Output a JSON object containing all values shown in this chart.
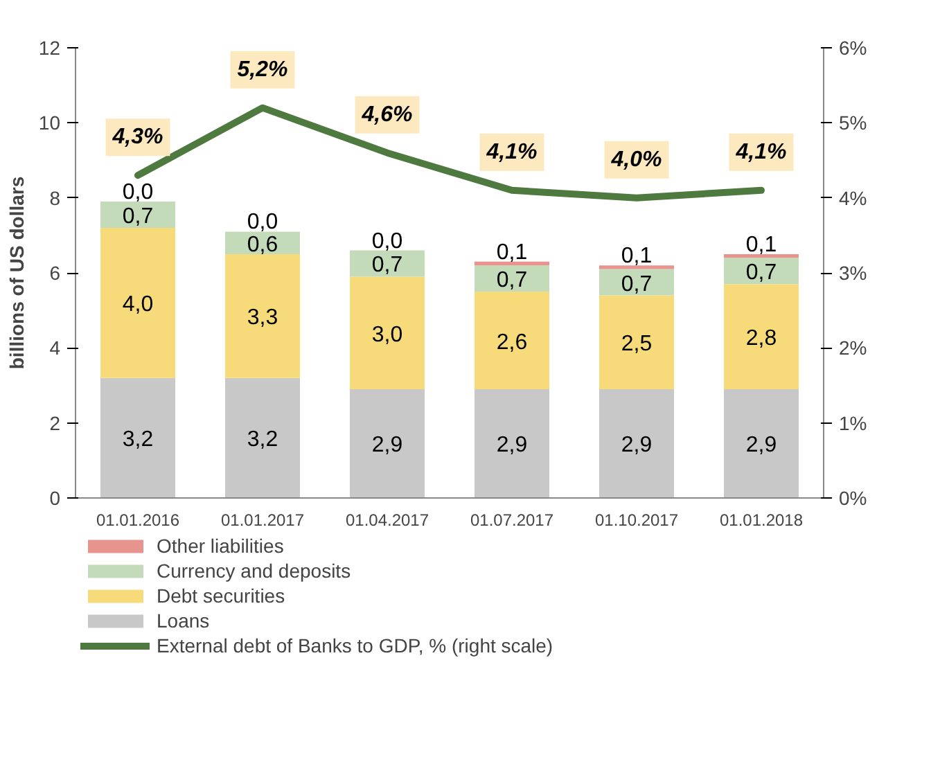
{
  "chart_data": {
    "type": "bar",
    "stacked": true,
    "categories": [
      "01.01.2016",
      "01.01.2017",
      "01.04.2017",
      "01.07.2017",
      "01.10.2017",
      "01.01.2018"
    ],
    "ylabel": "billions of US dollars",
    "ylim": [
      0,
      12
    ],
    "yticks": [
      0,
      2,
      4,
      6,
      8,
      10,
      12
    ],
    "y2lim": [
      0,
      6
    ],
    "y2ticks": [
      {
        "value": 0,
        "label": "0%"
      },
      {
        "value": 1,
        "label": "1%"
      },
      {
        "value": 2,
        "label": "2%"
      },
      {
        "value": 3,
        "label": "3%"
      },
      {
        "value": 4,
        "label": "4%"
      },
      {
        "value": 5,
        "label": "5%"
      },
      {
        "value": 6,
        "label": "6%"
      }
    ],
    "legend": "bottom",
    "grid": false,
    "series": [
      {
        "name": "Loans",
        "color": "#c8c8c8",
        "values": [
          3.2,
          3.2,
          2.9,
          2.9,
          2.9,
          2.9
        ],
        "value_labels": [
          "3,2",
          "3,2",
          "2,9",
          "2,9",
          "2,9",
          "2,9"
        ]
      },
      {
        "name": "Debt securities",
        "color": "#f7db7a",
        "values": [
          4.0,
          3.3,
          3.0,
          2.6,
          2.5,
          2.8
        ],
        "value_labels": [
          "4,0",
          "3,3",
          "3,0",
          "2,6",
          "2,5",
          "2,8"
        ]
      },
      {
        "name": "Currency and deposits",
        "color": "#c3dbb9",
        "values": [
          0.7,
          0.6,
          0.7,
          0.7,
          0.7,
          0.7
        ],
        "value_labels": [
          "0,7",
          "0,6",
          "0,7",
          "0,7",
          "0,7",
          "0,7"
        ]
      },
      {
        "name": "Other liabilities",
        "color": "#e8948e",
        "values": [
          0.0,
          0.0,
          0.0,
          0.1,
          0.1,
          0.1
        ],
        "value_labels": [
          "0,0",
          "0,0",
          "0,0",
          "0,1",
          "0,1",
          "0,1"
        ]
      },
      {
        "name": "External debt of Banks to GDP, % (right scale)",
        "type": "line",
        "axis": "y2",
        "color": "#4e7a3f",
        "values": [
          4.3,
          5.2,
          4.6,
          4.1,
          4.0,
          4.1
        ],
        "value_labels": [
          "4,3%",
          "5,2%",
          "4,6%",
          "4,1%",
          "4,0%",
          "4,1%"
        ]
      }
    ]
  }
}
